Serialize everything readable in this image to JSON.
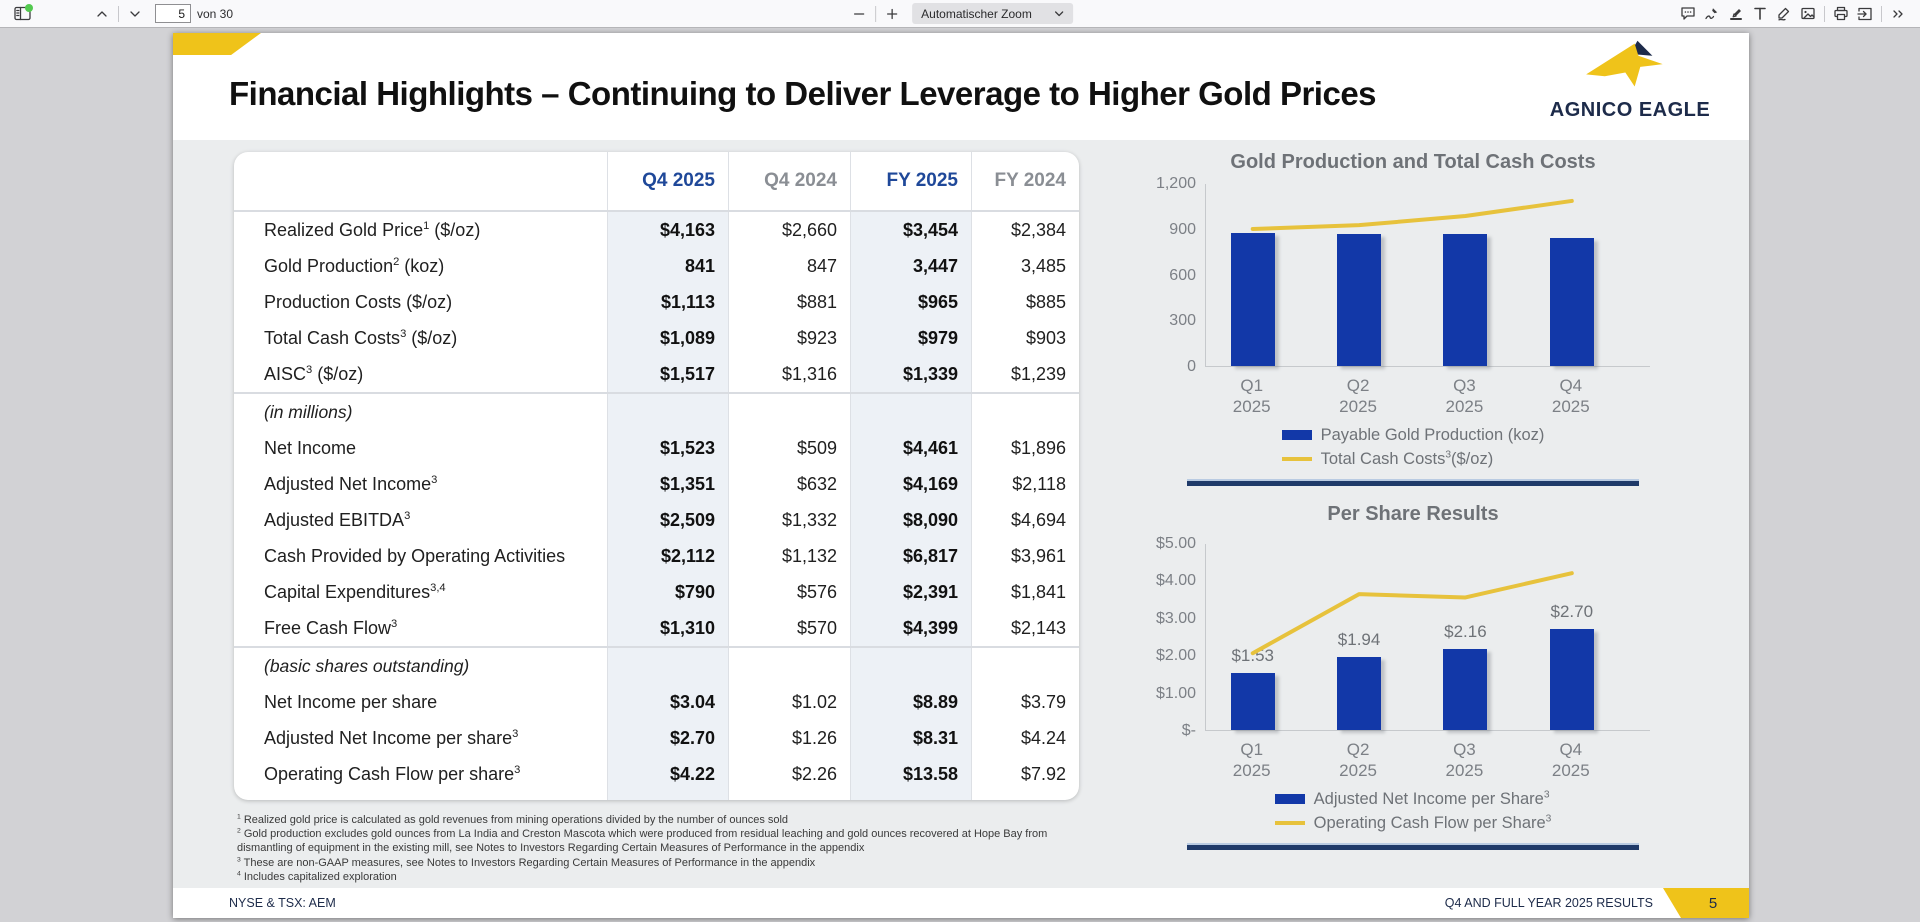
{
  "viewer": {
    "toolbar": {
      "page_input": "5",
      "page_count_label": "von 30",
      "zoom_select_value": "Automatischer Zoom",
      "icon_names": [
        "toggle-sidebar",
        "page-up",
        "page-down",
        "zoom-out",
        "zoom-in",
        "comment",
        "signature",
        "highlight",
        "text",
        "draw",
        "image",
        "print",
        "save",
        "more-tools"
      ]
    }
  },
  "slide": {
    "title": "Financial Highlights – Continuing to Deliver Leverage to Higher Gold Prices",
    "logo_text": "AGNICO EAGLE",
    "table": {
      "columns": [
        "Q4 2025",
        "Q4 2024",
        "FY 2025",
        "FY 2024"
      ],
      "sections": [
        {
          "label": "",
          "rows": [
            [
              "Realized Gold Price^{1} ($/oz)",
              "$4,163",
              "$2,660",
              "$3,454",
              "$2,384"
            ],
            [
              "Gold Production^{2} (koz)",
              "841",
              "847",
              "3,447",
              "3,485"
            ],
            [
              "Production Costs ($/oz)",
              "$1,113",
              "$881",
              "$965",
              "$885"
            ],
            [
              "Total Cash Costs^{3} ($/oz)",
              "$1,089",
              "$923",
              "$979",
              "$903"
            ],
            [
              "AISC^{3} ($/oz)",
              "$1,517",
              "$1,316",
              "$1,339",
              "$1,239"
            ]
          ]
        },
        {
          "label": "(in millions)",
          "rows": [
            [
              "Net Income",
              "$1,523",
              "$509",
              "$4,461",
              "$1,896"
            ],
            [
              "Adjusted Net Income^{3}",
              "$1,351",
              "$632",
              "$4,169",
              "$2,118"
            ],
            [
              "Adjusted EBITDA^{3}",
              "$2,509",
              "$1,332",
              "$8,090",
              "$4,694"
            ],
            [
              "Cash Provided by Operating Activities",
              "$2,112",
              "$1,132",
              "$6,817",
              "$3,961"
            ],
            [
              "Capital Expenditures^{3,4}",
              "$790",
              "$576",
              "$2,391",
              "$1,841"
            ],
            [
              "Free Cash Flow^{3}",
              "$1,310",
              "$570",
              "$4,399",
              "$2,143"
            ]
          ]
        },
        {
          "label": "(basic shares outstanding)",
          "rows": [
            [
              "Net Income per share",
              "$3.04",
              "$1.02",
              "$8.89",
              "$3.79"
            ],
            [
              "Adjusted Net Income per share^{3}",
              "$2.70",
              "$1.26",
              "$8.31",
              "$4.24"
            ],
            [
              "Operating Cash Flow per share^{3}",
              "$4.22",
              "$2.26",
              "$13.58",
              "$7.92"
            ]
          ]
        }
      ]
    },
    "footnotes": [
      "^{1} Realized gold price is calculated as gold revenues from mining operations divided by the number of ounces sold",
      "^{2} Gold production excludes gold ounces from La India and Creston Mascota which were produced from residual leaching and gold ounces recovered at Hope Bay from dismantling of equipment in the existing mill, see Notes to Investors Regarding Certain Measures of Performance in the appendix",
      "^{3} These are non-GAAP measures, see Notes to Investors Regarding Certain Measures of Performance in the appendix",
      "^{4} Includes capitalized exploration"
    ],
    "footer": {
      "left": "NYSE & TSX: AEM",
      "right": "Q4 AND FULL YEAR 2025 RESULTS",
      "page_number": "5"
    }
  },
  "chart_data": [
    {
      "type": "bar",
      "title": "Gold Production and Total Cash Costs",
      "categories": [
        "Q1 2025",
        "Q2 2025",
        "Q3 2025",
        "Q4 2025"
      ],
      "series": [
        {
          "name": "Payable Gold Production (koz)",
          "type": "bar",
          "color": "#1238a8",
          "values": [
            873,
            866,
            865,
            841
          ]
        },
        {
          "name": "Total Cash Costs^{3}($/oz)",
          "type": "line",
          "color": "#e7c23c",
          "values": [
            905,
            930,
            990,
            1089
          ]
        }
      ],
      "xlabel": "",
      "ylabel": "",
      "ylim": [
        0,
        1200
      ],
      "yticks": [
        0,
        300,
        600,
        900,
        1200
      ],
      "ytick_labels": [
        "0",
        "300",
        "600",
        "900",
        "1,200"
      ],
      "grid": false,
      "legend_position": "bottom"
    },
    {
      "type": "bar",
      "title": "Per Share Results",
      "categories": [
        "Q1 2025",
        "Q2 2025",
        "Q3 2025",
        "Q4 2025"
      ],
      "series": [
        {
          "name": "Adjusted Net Income per Share^{3}",
          "type": "bar",
          "color": "#1238a8",
          "values": [
            1.53,
            1.94,
            2.16,
            2.7
          ],
          "labels": [
            "$1.53",
            "$1.94",
            "$2.16",
            "$2.70"
          ]
        },
        {
          "name": "Operating Cash Flow per Share^{3}",
          "type": "line",
          "color": "#e7c23c",
          "values": [
            2.08,
            3.66,
            3.57,
            4.22
          ]
        }
      ],
      "xlabel": "",
      "ylabel": "",
      "ylim": [
        0,
        5
      ],
      "yticks": [
        0,
        1,
        2,
        3,
        4,
        5
      ],
      "ytick_labels": [
        "$-",
        "$1.00",
        "$2.00",
        "$3.00",
        "$4.00",
        "$5.00"
      ],
      "grid": false,
      "legend_position": "bottom"
    }
  ],
  "colors": {
    "brand_gold": "#efc31a",
    "brand_navy": "#1d2b4a",
    "bar_blue": "#1238a8",
    "line_yellow": "#e7c23c",
    "header_blue": "#1f4899",
    "header_gray": "#8a8e94",
    "slide_gray": "#ebedee"
  }
}
